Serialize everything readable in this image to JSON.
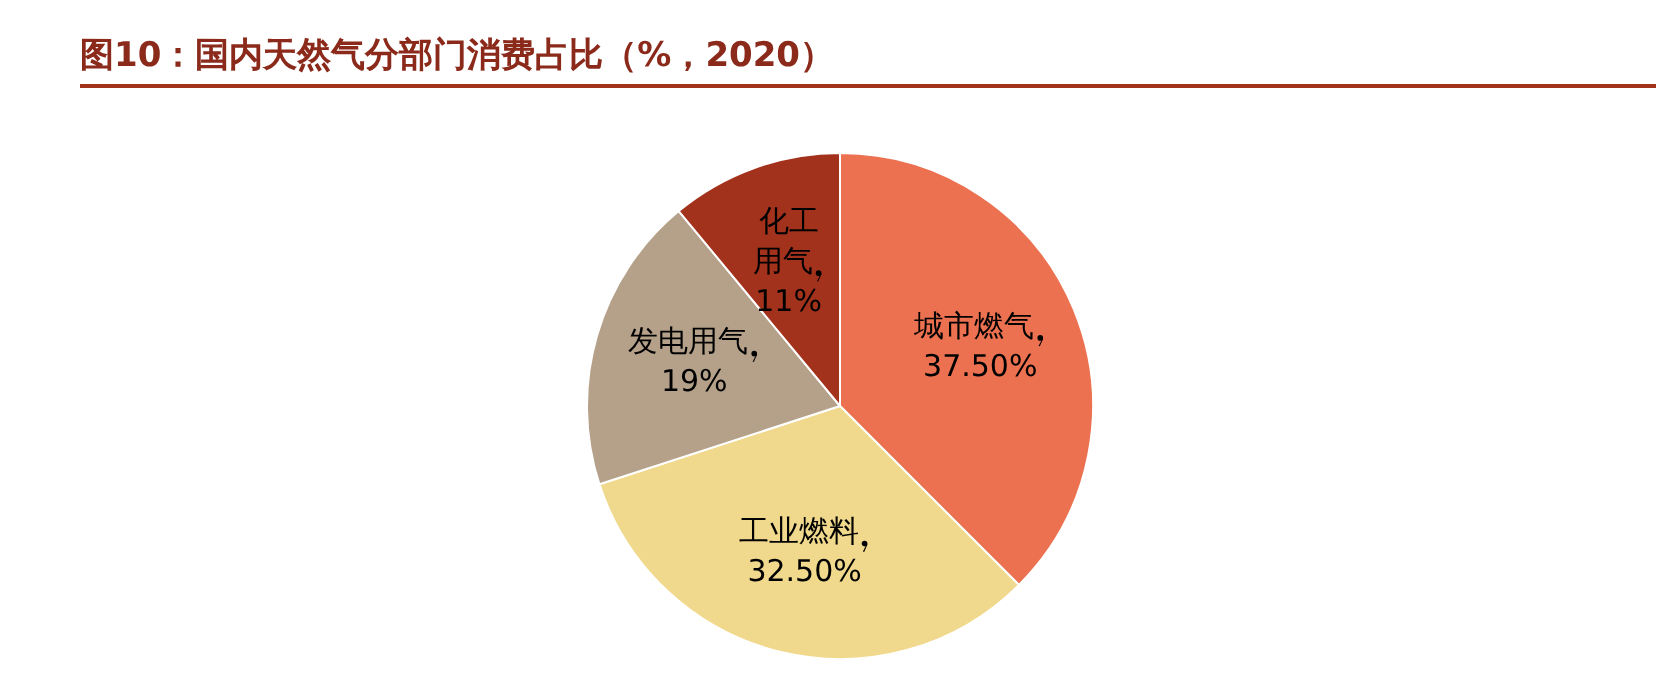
{
  "chart_data": {
    "type": "pie",
    "title": "图10：国内天然气分部门消费占比（%，2020）",
    "categories": [
      "城市燃气",
      "工业燃料",
      "发电用气",
      "化工用气"
    ],
    "values": [
      37.5,
      32.5,
      19,
      11
    ],
    "colors": [
      "#ec7150",
      "#f0d98c",
      "#b5a189",
      "#a2321c"
    ],
    "value_labels": [
      "37.50%",
      "32.50%",
      "19%",
      "11%"
    ],
    "legend": false
  }
}
